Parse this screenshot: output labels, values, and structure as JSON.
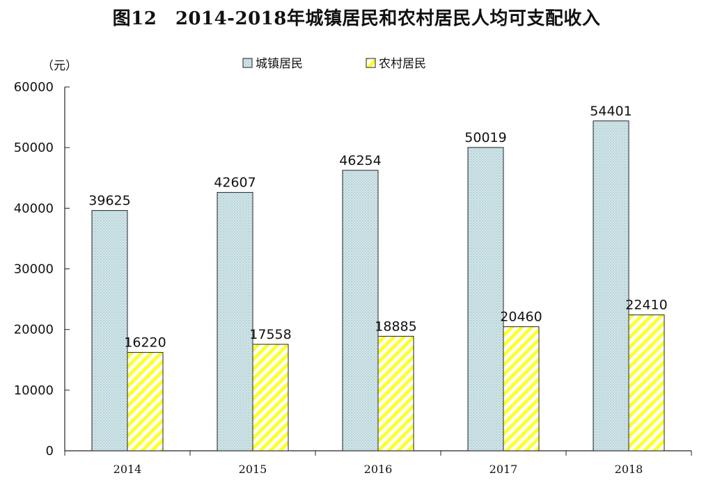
{
  "chart_data": {
    "type": "bar",
    "title": "图12　2014-2018年城镇居民和农村居民人均可支配收入",
    "ylabel": "（元）",
    "xlabel": "",
    "categories": [
      "2014",
      "2015",
      "2016",
      "2017",
      "2018"
    ],
    "series": [
      {
        "name": "城镇居民",
        "values": [
          39625,
          42607,
          46254,
          50019,
          54401
        ],
        "color": "#cde3e6",
        "pattern": "dotted"
      },
      {
        "name": "农村居民",
        "values": [
          16220,
          17558,
          18885,
          20460,
          22410
        ],
        "color": "#ffff33",
        "pattern": "diagonal-stripes"
      }
    ],
    "ylim": [
      0,
      60000
    ],
    "yticks": [
      "0",
      "10000",
      "20000",
      "30000",
      "40000",
      "50000",
      "60000"
    ],
    "legend_position": "top-center",
    "grid": false
  }
}
